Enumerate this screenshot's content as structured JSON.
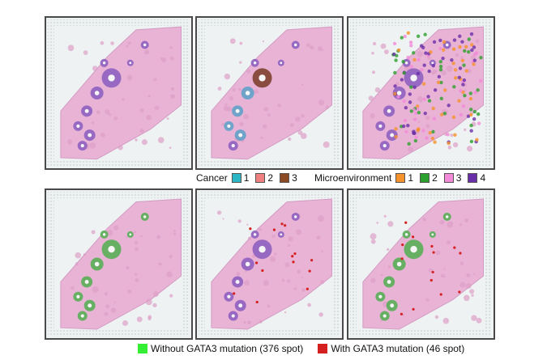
{
  "panels": [
    {
      "row": 0,
      "col": 0,
      "overlay": "none"
    },
    {
      "row": 0,
      "col": 1,
      "overlay": "cancer-clusters"
    },
    {
      "row": 0,
      "col": 2,
      "overlay": "microenvironment-clusters"
    },
    {
      "row": 1,
      "col": 0,
      "overlay": "without-gata3-mutation"
    },
    {
      "row": 1,
      "col": 1,
      "overlay": "with-gata3-mutation"
    },
    {
      "row": 1,
      "col": 2,
      "overlay": "both-gata3-groups"
    }
  ],
  "cancer_legend": {
    "title": "Cancer",
    "items": [
      {
        "label": "1",
        "color": "#2bb8c4"
      },
      {
        "label": "2",
        "color": "#f08080"
      },
      {
        "label": "3",
        "color": "#8b4a24"
      }
    ]
  },
  "micro_legend": {
    "title": "Microenvironment",
    "items": [
      {
        "label": "1",
        "color": "#f5922a"
      },
      {
        "label": "2",
        "color": "#2ca02c"
      },
      {
        "label": "3",
        "color": "#f28ad9"
      },
      {
        "label": "4",
        "color": "#6a2fa8"
      }
    ]
  },
  "mutation_legend": {
    "items": [
      {
        "label": "Without GATA3 mutation (376 spot)",
        "color": "#33ee33"
      },
      {
        "label": "With GATA3 mutation (46 spot)",
        "color": "#d42020"
      }
    ]
  }
}
